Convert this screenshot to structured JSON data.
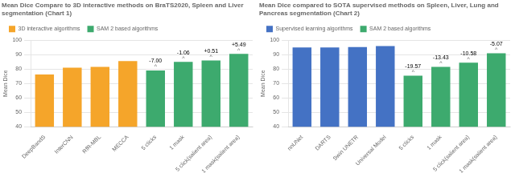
{
  "chart_data": [
    {
      "type": "bar",
      "title": "Mean Dice Compare to 3D interactive methods on BraTS2020, Spleen and Liver segmentation (Chart 1)",
      "ylabel": "Mean Dice",
      "categories": [
        "DeepBandS",
        "InterCNN",
        "RfR-MBL",
        "MECCA",
        "5 clicks",
        "1 mask",
        "5 click(salient area)",
        "1 mask(salient area)"
      ],
      "series": [
        {
          "name": "3D interactive algorithms",
          "color": "#F5A52A",
          "values": [
            76.2,
            81.0,
            81.5,
            85.5,
            null,
            null,
            null,
            null
          ]
        },
        {
          "name": "SAM 2 based algorithms",
          "color": "#3DAA6E",
          "values": [
            null,
            null,
            null,
            null,
            79.0,
            84.94,
            86.01,
            90.49
          ]
        }
      ],
      "ylim": [
        40,
        100
      ],
      "yticks": [
        40,
        50,
        60,
        70,
        80,
        90,
        100
      ],
      "grid": true,
      "legend": "upper left",
      "annotations": [
        {
          "category": "5 clicks",
          "text": "^"
        },
        {
          "category": "5 clicks",
          "text": "-7.00"
        },
        {
          "category": "1 mask",
          "text": "^"
        },
        {
          "category": "1 mask",
          "text": "-1.06"
        },
        {
          "category": "5 click(salient area)",
          "text": "^"
        },
        {
          "category": "5 click(salient area)",
          "text": "+0.51"
        },
        {
          "category": "1 mask(salient area)",
          "text": "^"
        },
        {
          "category": "1 mask(salient area)",
          "text": "+5.49"
        }
      ]
    },
    {
      "type": "bar",
      "title": "Mean Dice compared to SOTA supervised methods on Spleen, Liver, Lung and Pancreas segmentation (Chart 2)",
      "ylabel": "Mean Dice",
      "categories": [
        "nnUNet",
        "DARTS",
        "Swin UNETR",
        "Universal Model",
        "5 clicks",
        "1 mask",
        "5 click(salient area)",
        "1 mask(salient area)"
      ],
      "series": [
        {
          "name": "Supervised learning algorithms",
          "color": "#4472C4",
          "values": [
            95.0,
            95.0,
            95.2,
            96.0,
            null,
            null,
            null,
            null
          ]
        },
        {
          "name": "SAM 2 based algorithms",
          "color": "#3DAA6E",
          "values": [
            null,
            null,
            null,
            null,
            75.43,
            81.57,
            84.42,
            90.93
          ]
        }
      ],
      "ylim": [
        40,
        100
      ],
      "yticks": [
        40,
        50,
        60,
        70,
        80,
        90,
        100
      ],
      "grid": true,
      "legend": "upper left",
      "annotations": [
        {
          "category": "5 clicks",
          "text": "^"
        },
        {
          "category": "5 clicks",
          "text": "-19.57"
        },
        {
          "category": "1 mask",
          "text": "^"
        },
        {
          "category": "1 mask",
          "text": "-13.43"
        },
        {
          "category": "5 click(salient area)",
          "text": "^"
        },
        {
          "category": "5 click(salient area)",
          "text": "-10.58"
        },
        {
          "category": "1 mask(salient area)",
          "text": "^"
        },
        {
          "category": "1 mask(salient area)",
          "text": "-5.07"
        }
      ]
    }
  ]
}
